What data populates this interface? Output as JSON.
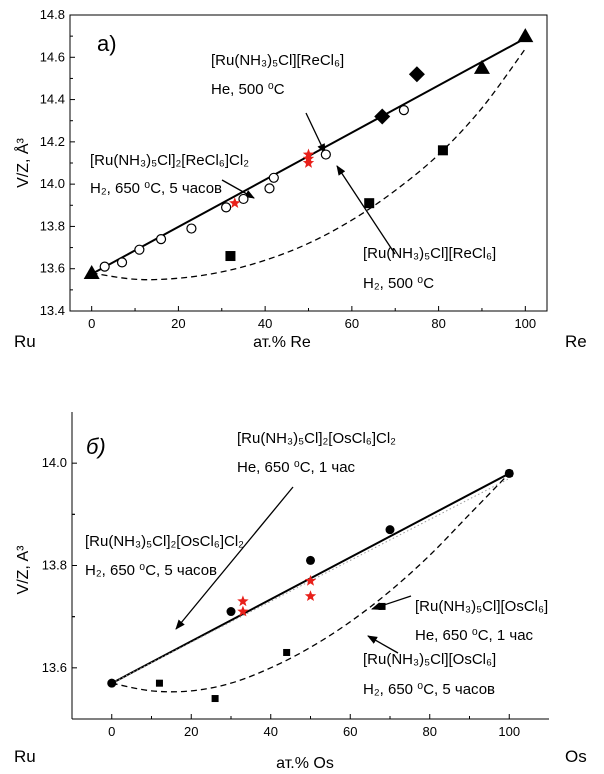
{
  "chart_data": [
    {
      "type": "scatter",
      "panel_label": "а)",
      "xlabel": "ат.% Re",
      "ylabel": "V/Z, Å³",
      "x_left_label": "Ru",
      "x_right_label": "Re",
      "xlim": [
        -5,
        105
      ],
      "ylim": [
        13.4,
        14.8
      ],
      "x_ticks": [
        0,
        20,
        40,
        60,
        80,
        100
      ],
      "y_ticks": [
        13.4,
        13.6,
        13.8,
        14.0,
        14.2,
        14.4,
        14.6,
        14.8
      ],
      "x_tick_labels": [
        "0",
        "20",
        "40",
        "60",
        "80",
        "100"
      ],
      "y_tick_labels": [
        "13.4",
        "13.6",
        "13.8",
        "14.0",
        "14.2",
        "14.4",
        "14.6",
        "14.8"
      ],
      "series": [
        {
          "marker": "triangle",
          "x": [
            0,
            90,
            100
          ],
          "y": [
            13.58,
            14.55,
            14.7
          ]
        },
        {
          "marker": "diamond",
          "x": [
            67,
            75
          ],
          "y": [
            14.32,
            14.52
          ]
        },
        {
          "marker": "open-circle",
          "x": [
            3,
            7,
            11,
            16,
            23,
            31,
            35,
            41,
            42,
            54,
            72
          ],
          "y": [
            13.61,
            13.63,
            13.69,
            13.74,
            13.79,
            13.89,
            13.93,
            13.98,
            14.03,
            14.14,
            14.35
          ]
        },
        {
          "marker": "square",
          "x": [
            32,
            64,
            81
          ],
          "y": [
            13.66,
            13.91,
            14.16
          ]
        },
        {
          "marker": "red-star",
          "x": [
            33,
            50,
            50,
            50
          ],
          "y": [
            13.91,
            14.14,
            14.12,
            14.1
          ]
        }
      ],
      "fit_lines": [
        {
          "style": "solid",
          "x": [
            0,
            100
          ],
          "y": [
            13.575,
            14.69
          ]
        },
        {
          "style": "dashed",
          "x": [
            0,
            10,
            20,
            30,
            40,
            50,
            60,
            70,
            80,
            90,
            100
          ],
          "y": [
            13.58,
            13.55,
            13.555,
            13.585,
            13.64,
            13.72,
            13.83,
            13.97,
            14.14,
            14.36,
            14.64
          ]
        }
      ],
      "annotations": [
        {
          "line1": "[Ru(NH₃)₅Cl][ReCl₆]",
          "line2": "He, 500 ⁰C"
        },
        {
          "line1": "[Ru(NH₃)₅Cl]₂[ReCl₆]Cl₂",
          "line2": "H₂, 650 ⁰C, 5 часов"
        },
        {
          "line1": "[Ru(NH₃)₅Cl][ReCl₆]",
          "line2": "H₂, 500 ⁰C"
        }
      ]
    },
    {
      "type": "scatter",
      "panel_label": "б)",
      "xlabel": "ат.% Os",
      "ylabel": "V/Z, A³",
      "x_left_label": "Ru",
      "x_right_label": "Os",
      "xlim": [
        -10,
        110
      ],
      "ylim": [
        13.5,
        14.1
      ],
      "x_ticks": [
        0,
        20,
        40,
        60,
        80,
        100
      ],
      "y_ticks": [
        13.6,
        13.8,
        14.0
      ],
      "x_tick_labels": [
        "0",
        "20",
        "40",
        "60",
        "80",
        "100"
      ],
      "y_tick_labels": [
        "13.6",
        "13.8",
        "14.0"
      ],
      "series": [
        {
          "marker": "filled-circle",
          "x": [
            0,
            30,
            50,
            70,
            100
          ],
          "y": [
            13.57,
            13.71,
            13.81,
            13.87,
            13.98
          ]
        },
        {
          "marker": "square",
          "x": [
            12,
            26,
            44,
            68,
            100
          ],
          "y": [
            13.57,
            13.54,
            13.63,
            13.72,
            13.98
          ]
        },
        {
          "marker": "red-star",
          "x": [
            33,
            33,
            50,
            50
          ],
          "y": [
            13.73,
            13.71,
            13.77,
            13.74
          ]
        }
      ],
      "fit_lines": [
        {
          "style": "solid",
          "x": [
            0,
            100
          ],
          "y": [
            13.57,
            13.98
          ]
        },
        {
          "style": "dotted",
          "x": [
            0,
            100
          ],
          "y": [
            13.57,
            13.97
          ]
        },
        {
          "style": "dashed",
          "x": [
            0,
            10,
            20,
            30,
            40,
            50,
            60,
            70,
            80,
            90,
            100
          ],
          "y": [
            13.57,
            13.555,
            13.555,
            13.57,
            13.6,
            13.64,
            13.69,
            13.75,
            13.82,
            13.9,
            13.98
          ]
        }
      ],
      "annotations": [
        {
          "line1": "[Ru(NH₃)₅Cl]₂[OsCl₆]Cl₂",
          "line2": "He, 650 ⁰C, 1 час"
        },
        {
          "line1": "[Ru(NH₃)₅Cl]₂[OsCl₆]Cl₂",
          "line2": "H₂, 650 ⁰C, 5 часов"
        },
        {
          "line1": "[Ru(NH₃)₅Cl][OsCl₆]",
          "line2": "He, 650 ⁰C, 1 час"
        },
        {
          "line1": "[Ru(NH₃)₅Cl][OsCl₆]",
          "line2": "H₂, 650 ⁰C, 5 часов"
        }
      ]
    }
  ]
}
